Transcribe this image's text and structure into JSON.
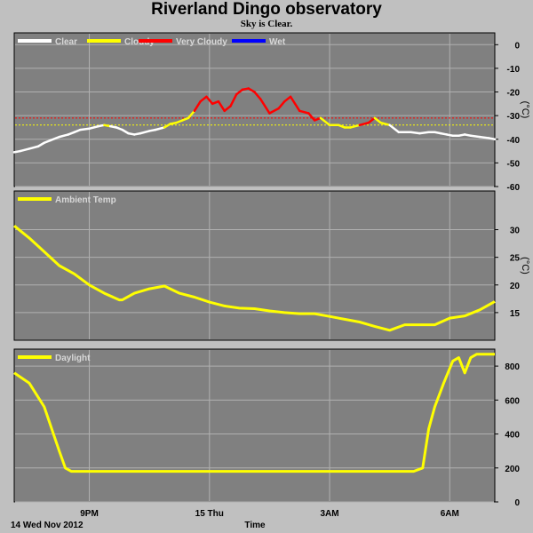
{
  "title": "Riverland Dingo observatory",
  "subtitle": "Sky is Clear.",
  "xlabel": "Time",
  "date_label": "14 Wed Nov 2012",
  "chart_data": [
    {
      "type": "line",
      "panel": "sky",
      "ylabel": "(°C)",
      "ylim": [
        -60,
        5
      ],
      "yticks": [
        0,
        -10,
        -20,
        -30,
        -40,
        -50,
        -60
      ],
      "legend": [
        {
          "name": "Clear",
          "color": "#ffffff"
        },
        {
          "name": "Cloudy",
          "color": "#ffff00"
        },
        {
          "name": "Very Cloudy",
          "color": "#ff0000"
        },
        {
          "name": "Wet",
          "color": "#0000ff"
        }
      ],
      "thresholds": [
        {
          "value": -31,
          "color": "#ff0000"
        },
        {
          "value": -34,
          "color": "#ffff00"
        }
      ],
      "x": [
        0,
        0.2,
        0.5,
        0.8,
        1,
        1.2,
        1.5,
        1.8,
        2,
        2.2,
        2.5,
        2.8,
        3,
        3.2,
        3.4,
        3.6,
        3.8,
        4,
        4.2,
        4.5,
        4.7,
        5,
        5.2,
        5.4,
        5.6,
        5.8,
        6,
        6.2,
        6.4,
        6.6,
        6.8,
        7,
        7.2,
        7.4,
        7.6,
        7.8,
        8,
        8.2,
        8.5,
        8.8,
        9,
        9.2,
        9.5,
        9.8,
        10,
        10.2,
        10.5,
        10.8,
        11,
        11.2,
        11.5,
        11.8,
        12,
        12.2,
        12.5,
        12.8,
        13,
        13.2,
        13.5,
        13.8,
        14,
        14.2,
        14.4,
        14.6,
        14.8,
        15,
        15.2,
        15.5,
        15.8,
        16
      ],
      "y": [
        -45.5,
        -45,
        -44,
        -43,
        -41.5,
        -40.5,
        -39,
        -38,
        -37,
        -36,
        -35.5,
        -34.5,
        -34,
        -34.5,
        -35,
        -36,
        -37.5,
        -38,
        -37.5,
        -36.5,
        -36,
        -35,
        -33.5,
        -33,
        -32,
        -31,
        -28,
        -24,
        -22,
        -25,
        -24,
        -28,
        -26,
        -21,
        -19,
        -18.5,
        -20,
        -23,
        -29,
        -27,
        -24,
        -22,
        -28,
        -29,
        -32,
        -31,
        -34,
        -34,
        -35,
        -35,
        -34,
        -33,
        -31,
        -33,
        -34,
        -37,
        -37,
        -37,
        -37.5,
        -37,
        -37,
        -37.5,
        -38,
        -38.5,
        -38.5,
        -38,
        -38.5,
        -39,
        -39.5,
        -40
      ],
      "status": [
        "clear",
        "clear",
        "clear",
        "clear",
        "clear",
        "clear",
        "clear",
        "clear",
        "clear",
        "clear",
        "clear",
        "clear",
        "clear",
        "cloudy",
        "clear",
        "clear",
        "clear",
        "clear",
        "clear",
        "clear",
        "clear",
        "clear",
        "cloudy",
        "cloudy",
        "cloudy",
        "cloudy",
        "cloudy",
        "very_cloudy",
        "very_cloudy",
        "very_cloudy",
        "very_cloudy",
        "very_cloudy",
        "very_cloudy",
        "very_cloudy",
        "very_cloudy",
        "very_cloudy",
        "very_cloudy",
        "very_cloudy",
        "very_cloudy",
        "very_cloudy",
        "very_cloudy",
        "very_cloudy",
        "very_cloudy",
        "very_cloudy",
        "very_cloudy",
        "very_cloudy",
        "cloudy",
        "cloudy",
        "cloudy",
        "cloudy",
        "cloudy",
        "very_cloudy",
        "very_cloudy",
        "cloudy",
        "cloudy",
        "clear",
        "clear",
        "clear",
        "clear",
        "clear",
        "clear",
        "clear",
        "clear",
        "clear",
        "clear",
        "clear",
        "clear",
        "clear",
        "clear",
        "clear"
      ]
    },
    {
      "type": "line",
      "panel": "temp",
      "ylabel": "(°C)",
      "ylim": [
        10,
        37
      ],
      "yticks": [
        30,
        25,
        20,
        15
      ],
      "series": [
        {
          "name": "Ambient Temp",
          "color": "#ffff00",
          "x": [
            0,
            0.5,
            1,
            1.5,
            2,
            2.5,
            3,
            3.5,
            3.6,
            4,
            4.5,
            5,
            5.5,
            6,
            6.5,
            7,
            7.5,
            8,
            8.5,
            9,
            9.5,
            10,
            10.5,
            11,
            11.5,
            12,
            12.5,
            13,
            13.5,
            14,
            14.5,
            15,
            15.5,
            16
          ],
          "y": [
            30.7,
            28.5,
            26,
            23.5,
            22,
            20,
            18.5,
            17.3,
            17.3,
            18.5,
            19.3,
            19.8,
            18.5,
            17.8,
            16.9,
            16.2,
            15.8,
            15.7,
            15.3,
            15,
            14.8,
            14.8,
            14.3,
            13.8,
            13.3,
            12.5,
            11.8,
            12.8,
            12.8,
            12.8,
            14,
            14.4,
            15.5,
            17
          ]
        }
      ]
    },
    {
      "type": "line",
      "panel": "daylight",
      "ylim": [
        0,
        900
      ],
      "yticks": [
        800,
        600,
        400,
        200,
        0
      ],
      "series": [
        {
          "name": "Daylight",
          "color": "#ffff00",
          "x": [
            0,
            0.5,
            1,
            1.5,
            1.7,
            1.9,
            2.2,
            3,
            4,
            5,
            6,
            7,
            8,
            9,
            10,
            11,
            12,
            13,
            13.3,
            13.6,
            13.8,
            14,
            14.3,
            14.6,
            14.8,
            15,
            15.2,
            15.4,
            15.6,
            16
          ],
          "y": [
            760,
            700,
            560,
            300,
            200,
            180,
            180,
            180,
            180,
            180,
            180,
            180,
            180,
            180,
            180,
            180,
            180,
            180,
            180,
            200,
            430,
            560,
            700,
            830,
            850,
            760,
            850,
            870,
            870,
            870
          ]
        }
      ]
    }
  ],
  "x_axis": {
    "range": [
      0,
      16
    ],
    "ticks": [
      {
        "value": 2.5,
        "label": "9PM"
      },
      {
        "value": 6.5,
        "label": "15 Thu"
      },
      {
        "value": 10.5,
        "label": "3AM"
      },
      {
        "value": 14.5,
        "label": "6AM"
      }
    ],
    "grid_extra": [
      2.5,
      6.5,
      10.5,
      14.5
    ]
  },
  "colors": {
    "background": "#c0c0c0",
    "plot_bg": "#808080",
    "grid": "#b0b0b0",
    "legend_text": "#d8d8d8"
  }
}
